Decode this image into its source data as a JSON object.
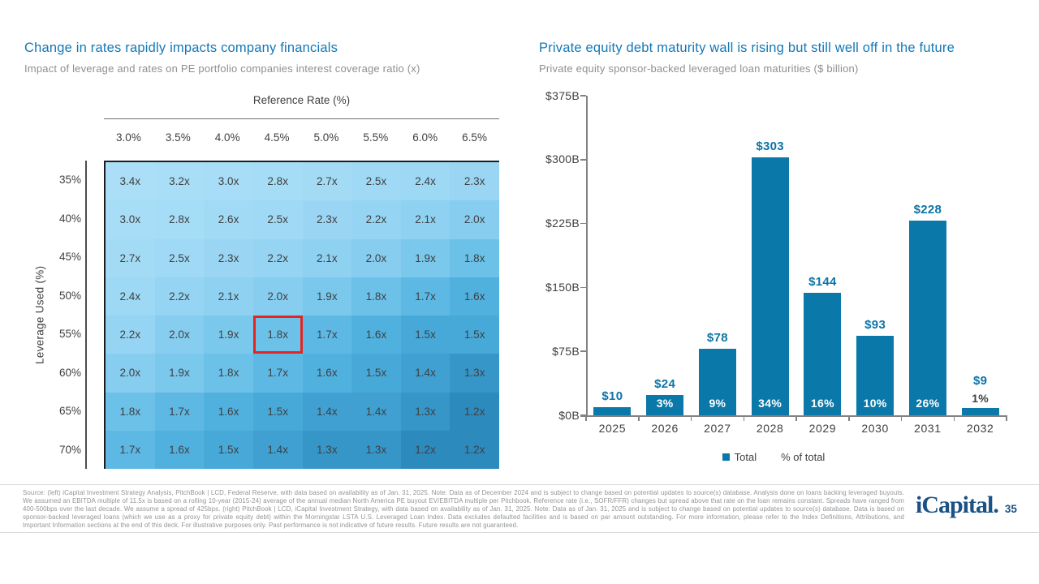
{
  "slide": {
    "page_number": "35",
    "logo_text": "iCapital.",
    "footer_lines": [
      "Source: (left) iCapital Investment Strategy Analysis, PitchBook | LCD, Federal Reserve, with data based on availability as of Jan. 31, 2025. Note: Data as of December 2024 and is subject to change based on potential updates to source(s) database. Analysis done on loans backing leveraged buyouts.",
      "We assumed an EBITDA multiple of 11.5x is based on a rolling 10-year (2015-24) average of the annual median North America PE buyout EV/EBITDA multiple per Pitchbook. Reference rate (i.e., SOFR/FFR) changes but spread above that rate on the loan remains constant. Spreads have ranged from",
      "400-500bps over the last decade. We assume a spread of 425bps. (right) PitchBook | LCD, iCapital Investment Strategy, with data based on availability as of Jan. 31, 2025. Note: Data as of Jan. 31, 2025 and is subject to change based on potential updates to source(s) database. Data is based on",
      "sponsor-backed leveraged loans (which we use as a proxy for private equity debt) within the Morningstar LSTA U.S. Leveraged Loan Index. Data excludes defaulted facilities and is based on par amount outstanding. For more information, please refer to the Index Definitions, Attributions, and",
      "Important Information sections at the end of this deck. For illustrative purposes only. Past performance is not indicative of future results. Future results are not guaranteed."
    ]
  },
  "left_chart": {
    "title": "Change in rates rapidly impacts company financials",
    "subtitle": "Impact of leverage and rates on PE portfolio companies interest coverage ratio (x)"
  },
  "right_chart": {
    "title": "Private equity debt maturity wall is rising but still well off in the future",
    "subtitle": "Private equity sponsor-backed leveraged loan maturities ($ billion)",
    "legend_total": "Total",
    "legend_pct": "% of total"
  },
  "colors": {
    "accent_blue": "#1478b5",
    "bar_blue": "#0a79a9",
    "highlight_red": "#e52420",
    "logo_navy": "#1a5286",
    "value_colors": {
      "3.4x": "#abdff7",
      "3.2x": "#a9def7",
      "3.0x": "#a7ddf6",
      "2.8x": "#a5dcf6",
      "2.7x": "#a3dbf5",
      "2.6x": "#a1daf5",
      "2.5x": "#9fd9f5",
      "2.4x": "#9dd8f4",
      "2.3x": "#9ad6f4",
      "2.2x": "#95d4f2",
      "2.1x": "#8ed1f1",
      "2.0x": "#86cdef",
      "1.9x": "#7ac8ec",
      "1.8x": "#6cc1e9",
      "1.7x": "#5db9e4",
      "1.6x": "#51b1de",
      "1.5x": "#47a9d8",
      "1.4x": "#3fa0d1",
      "1.3x": "#3696c8",
      "1.2x": "#2c8abd"
    }
  },
  "chart_data": [
    {
      "type": "heatmap",
      "title": "Change in rates rapidly impacts company financials",
      "subtitle": "Impact of leverage and rates on PE portfolio companies interest coverage ratio (x)",
      "xlabel": "Reference Rate (%)",
      "ylabel": "Leverage Used (%)",
      "columns": [
        "3.0%",
        "3.5%",
        "4.0%",
        "4.5%",
        "5.0%",
        "5.5%",
        "6.0%",
        "6.5%"
      ],
      "rows": [
        "35%",
        "40%",
        "45%",
        "50%",
        "55%",
        "60%",
        "65%",
        "70%"
      ],
      "values": [
        [
          "3.4x",
          "3.2x",
          "3.0x",
          "2.8x",
          "2.7x",
          "2.5x",
          "2.4x",
          "2.3x"
        ],
        [
          "3.0x",
          "2.8x",
          "2.6x",
          "2.5x",
          "2.3x",
          "2.2x",
          "2.1x",
          "2.0x"
        ],
        [
          "2.7x",
          "2.5x",
          "2.3x",
          "2.2x",
          "2.1x",
          "2.0x",
          "1.9x",
          "1.8x"
        ],
        [
          "2.4x",
          "2.2x",
          "2.1x",
          "2.0x",
          "1.9x",
          "1.8x",
          "1.7x",
          "1.6x"
        ],
        [
          "2.2x",
          "2.0x",
          "1.9x",
          "1.8x",
          "1.7x",
          "1.6x",
          "1.5x",
          "1.5x"
        ],
        [
          "2.0x",
          "1.9x",
          "1.8x",
          "1.7x",
          "1.6x",
          "1.5x",
          "1.4x",
          "1.3x"
        ],
        [
          "1.8x",
          "1.7x",
          "1.6x",
          "1.5x",
          "1.4x",
          "1.4x",
          "1.3x",
          "1.2x"
        ],
        [
          "1.7x",
          "1.6x",
          "1.5x",
          "1.4x",
          "1.3x",
          "1.3x",
          "1.2x",
          "1.2x"
        ]
      ],
      "highlight": {
        "row_index": 4,
        "col_index": 3,
        "row": "55%",
        "col": "4.5%",
        "value": "1.8x"
      }
    },
    {
      "type": "bar",
      "title": "Private equity debt maturity wall is rising but still well off in the future",
      "subtitle": "Private equity sponsor-backed leveraged loan maturities ($ billion)",
      "categories": [
        "2025",
        "2026",
        "2027",
        "2028",
        "2029",
        "2030",
        "2031",
        "2032"
      ],
      "values": [
        10,
        24,
        78,
        303,
        144,
        93,
        228,
        9
      ],
      "value_labels": [
        "$10",
        "$24",
        "$78",
        "$303",
        "$144",
        "$93",
        "$228",
        "$9"
      ],
      "pct_labels": [
        "",
        "3%",
        "9%",
        "34%",
        "16%",
        "10%",
        "26%",
        "1%"
      ],
      "pct_inside": [
        false,
        true,
        true,
        true,
        true,
        true,
        true,
        false
      ],
      "ylim": [
        0,
        375
      ],
      "yticks": [
        {
          "label": "$375B",
          "value": 375
        },
        {
          "label": "$300B",
          "value": 300
        },
        {
          "label": "$225B",
          "value": 225
        },
        {
          "label": "$150B",
          "value": 150
        },
        {
          "label": "$75B",
          "value": 75
        },
        {
          "label": "$0B",
          "value": 0
        }
      ],
      "legend": [
        "Total",
        "% of total"
      ],
      "grid": false,
      "legend_position": "bottom"
    }
  ]
}
